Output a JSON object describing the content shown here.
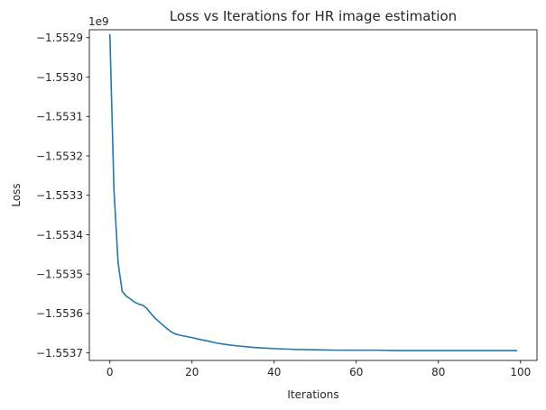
{
  "chart_data": {
    "type": "line",
    "title": "Loss vs Iterations for HR image estimation",
    "xlabel": "Iterations",
    "ylabel": "Loss",
    "y_offset_label": "1e9",
    "xlim": [
      -5,
      104
    ],
    "ylim": [
      -1.553719,
      -1.55288
    ],
    "x_ticks": [
      0,
      20,
      40,
      60,
      80,
      100
    ],
    "x_tick_labels": [
      "0",
      "20",
      "40",
      "60",
      "80",
      "100"
    ],
    "y_ticks": [
      -1.5529,
      -1.553,
      -1.5531,
      -1.5532,
      -1.5533,
      -1.5534,
      -1.5535,
      -1.5536,
      -1.5537
    ],
    "y_tick_labels": [
      "−1.5529",
      "−1.5530",
      "−1.5531",
      "−1.5532",
      "−1.5533",
      "−1.5534",
      "−1.5535",
      "−1.5536",
      "−1.5537"
    ],
    "grid": false,
    "color": "#1f77b4",
    "series": [
      {
        "x": [
          0,
          1,
          2,
          3,
          4,
          5,
          6,
          7,
          8,
          9,
          10,
          11,
          12,
          13,
          14,
          15,
          16,
          17,
          18,
          19,
          20,
          22,
          24,
          26,
          28,
          30,
          35,
          40,
          45,
          50,
          55,
          60,
          65,
          70,
          75,
          80,
          85,
          90,
          95,
          99
        ],
        "y": [
          -1.552893,
          -1.553287,
          -1.553471,
          -1.553544,
          -1.553556,
          -1.553563,
          -1.553571,
          -1.553576,
          -1.553579,
          -1.553587,
          -1.5536,
          -1.553612,
          -1.553621,
          -1.55363,
          -1.553639,
          -1.553647,
          -1.553652,
          -1.553655,
          -1.553657,
          -1.553659,
          -1.553661,
          -1.553666,
          -1.55367,
          -1.553675,
          -1.553678,
          -1.553681,
          -1.553686,
          -1.553689,
          -1.553691,
          -1.553692,
          -1.553693,
          -1.553693,
          -1.553693,
          -1.553694,
          -1.553694,
          -1.553694,
          -1.553694,
          -1.553694,
          -1.553694,
          -1.553694
        ]
      }
    ]
  }
}
